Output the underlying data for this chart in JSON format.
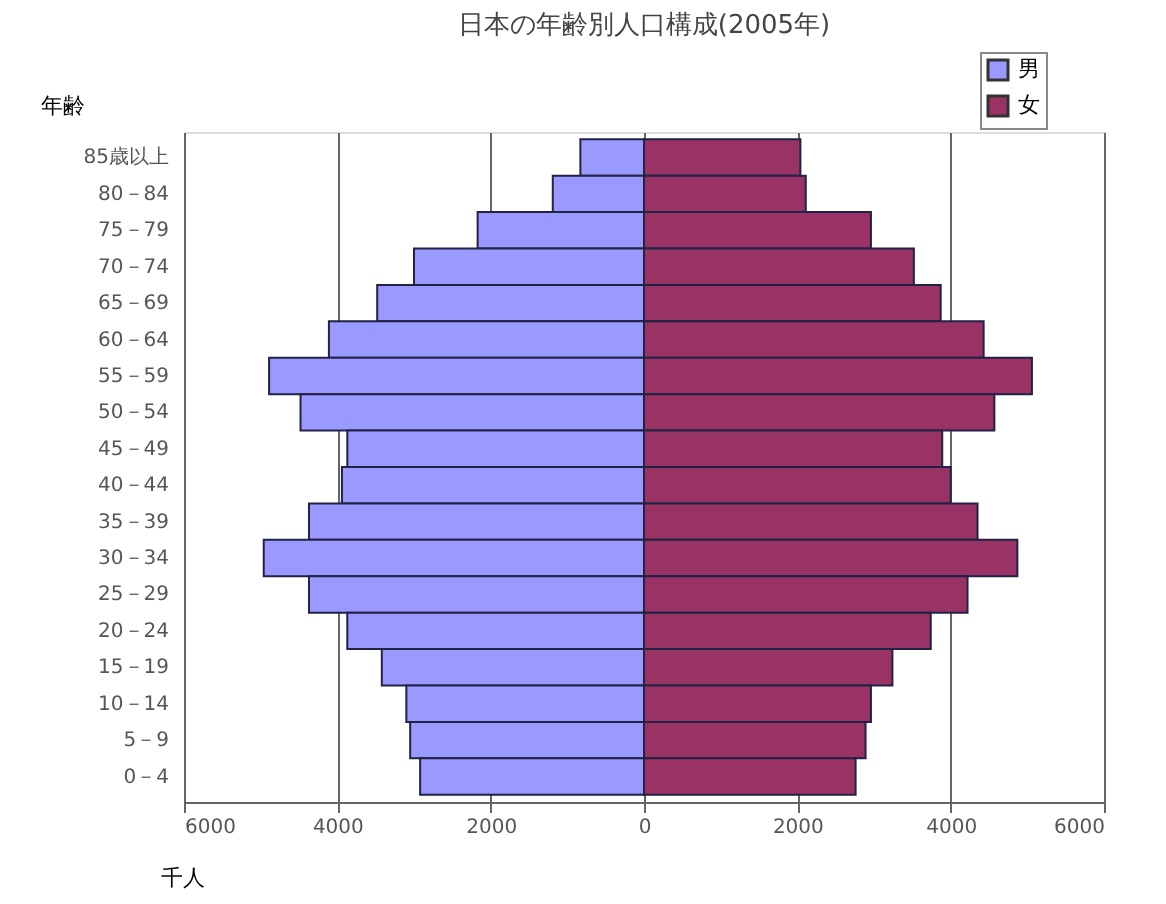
{
  "chart_data": {
    "type": "bar",
    "orientation": "horizontal",
    "title": "日本の年齢別人口構成(2005年)",
    "ylabel": "年齢",
    "xlabel": "千人",
    "categories": [
      "85歳以上",
      "80－84",
      "75－79",
      "70－74",
      "65－69",
      "60－64",
      "55－59",
      "50－54",
      "45－49",
      "40－44",
      "35－39",
      "30－34",
      "25－29",
      "20－24",
      "15－19",
      "10－14",
      "5－9",
      "0－4"
    ],
    "series": [
      {
        "name": "男",
        "color": "#9999ff",
        "values": [
          -830,
          -1190,
          -2170,
          -3000,
          -3480,
          -4110,
          -4890,
          -4480,
          -3870,
          -3940,
          -4370,
          -4960,
          -4370,
          -3870,
          -3420,
          -3100,
          -3050,
          -2920
        ]
      },
      {
        "name": "女",
        "color": "#993366",
        "values": [
          2040,
          2110,
          2960,
          3520,
          3870,
          4430,
          5060,
          4570,
          3890,
          4000,
          4350,
          4870,
          4220,
          3740,
          3240,
          2960,
          2890,
          2760
        ]
      }
    ],
    "xlim": [
      -6000,
      6000
    ],
    "xticks": [
      {
        "value": -6000,
        "label": "6000"
      },
      {
        "value": -4000,
        "label": "4000"
      },
      {
        "value": -2000,
        "label": "2000"
      },
      0,
      2000,
      4000,
      6000
    ],
    "grid": "x",
    "legend": "top right",
    "stacked": true
  }
}
